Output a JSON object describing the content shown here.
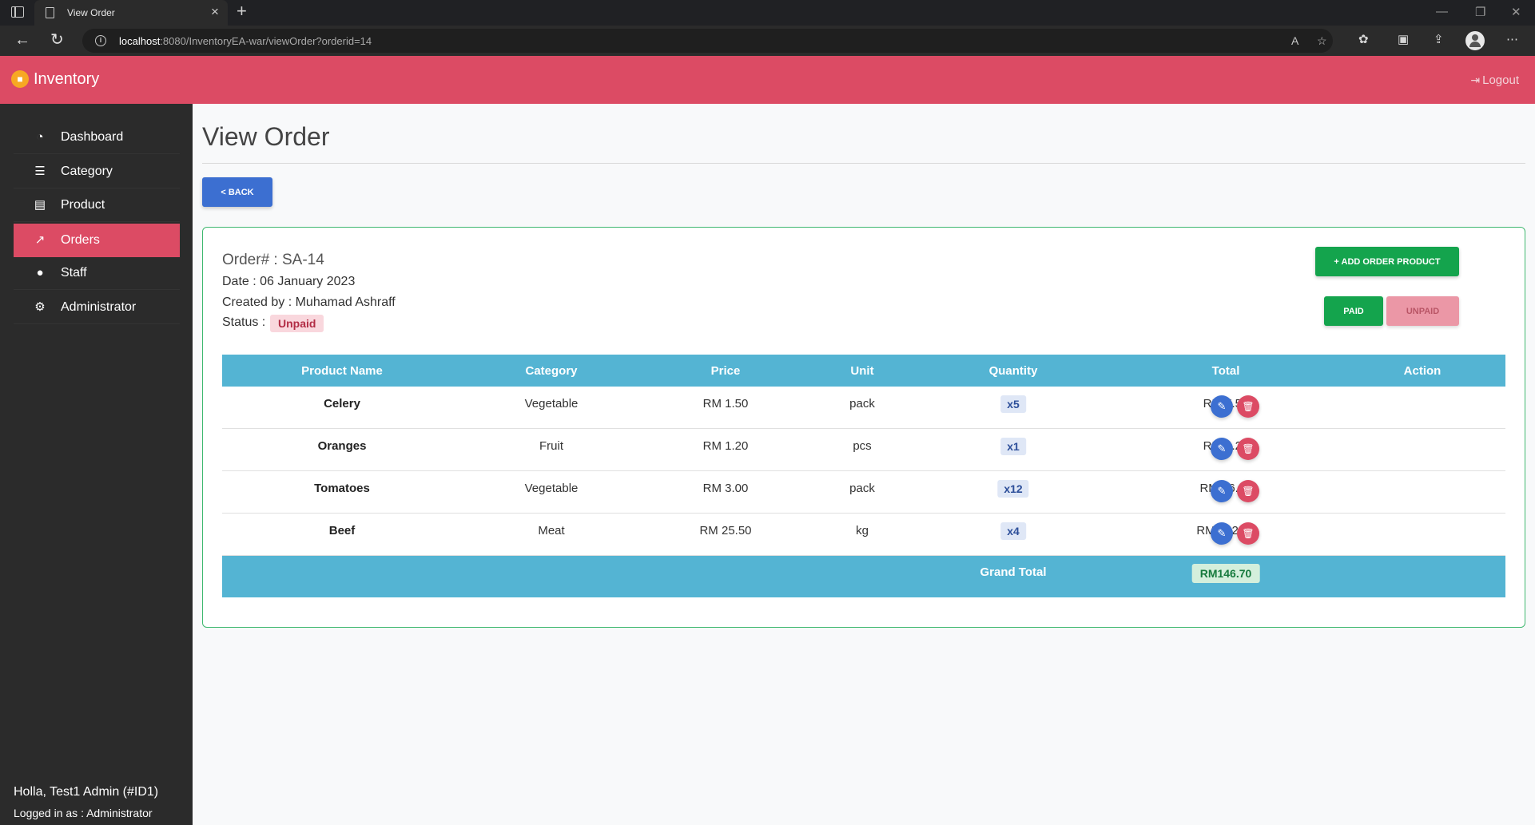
{
  "browser": {
    "tab_title": "View Order",
    "url_host": "localhost",
    "url_rest": ":8080/InventoryEA-war/viewOrder?orderid=14"
  },
  "header": {
    "brand": "Inventory",
    "logout_label": "Logout"
  },
  "sidebar": {
    "items": [
      {
        "label": "Dashboard",
        "icon": "dashboard-icon"
      },
      {
        "label": "Category",
        "icon": "list-icon"
      },
      {
        "label": "Product",
        "icon": "box-icon"
      },
      {
        "label": "Orders",
        "icon": "chart-icon",
        "active": true
      },
      {
        "label": "Staff",
        "icon": "user-icon"
      },
      {
        "label": "Administrator",
        "icon": "user-gear-icon"
      }
    ],
    "greeting": "Holla, Test1 Admin (#ID1)",
    "logged_in_as": "Logged in as : Administrator"
  },
  "main": {
    "page_title": "View Order",
    "back_label": "< BACK",
    "order": {
      "number": "Order# : SA-14",
      "date": "Date : 06 January 2023",
      "created_by": "Created by : Muhamad Ashraff",
      "status_label": "Status :",
      "status_value": "Unpaid"
    },
    "buttons": {
      "add_order_product": "+ ADD ORDER PRODUCT",
      "paid": "PAID",
      "unpaid": "UNPAID"
    },
    "table": {
      "headers": [
        "Product Name",
        "Category",
        "Price",
        "Unit",
        "Quantity",
        "Total",
        "Action"
      ],
      "rows": [
        {
          "name": "Celery",
          "category": "Vegetable",
          "price": "RM 1.50",
          "unit": "pack",
          "qty": "x5",
          "total": "RM 7.50"
        },
        {
          "name": "Oranges",
          "category": "Fruit",
          "price": "RM 1.20",
          "unit": "pcs",
          "qty": "x1",
          "total": "RM 1.20"
        },
        {
          "name": "Tomatoes",
          "category": "Vegetable",
          "price": "RM 3.00",
          "unit": "pack",
          "qty": "x12",
          "total": "RM 36.00"
        },
        {
          "name": "Beef",
          "category": "Meat",
          "price": "RM 25.50",
          "unit": "kg",
          "qty": "x4",
          "total": "RM 102.00"
        }
      ],
      "grand_total_label": "Grand Total",
      "grand_total_value": "RM146.70"
    }
  },
  "colors": {
    "header": "#dc4b64",
    "sidebar": "#2b2b2b",
    "primary": "#3c6fd1",
    "success": "#14a44d",
    "info": "#54b4d3"
  }
}
